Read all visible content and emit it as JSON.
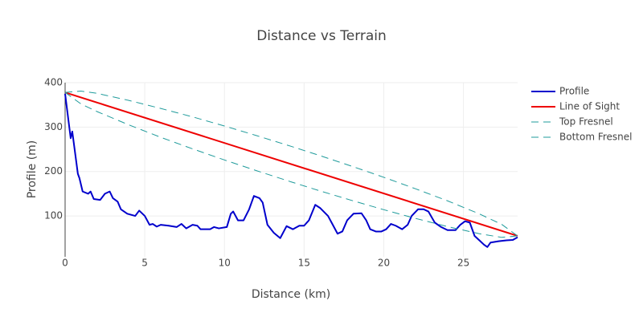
{
  "chart_data": {
    "type": "line",
    "title": "Distance vs Terrain",
    "x_label": "Distance (km)",
    "y_label": "Profile (m)",
    "xlim": [
      0,
      28.4
    ],
    "ylim": [
      8,
      400
    ],
    "xticks": [
      0,
      5,
      10,
      15,
      20,
      25
    ],
    "yticks": [
      100,
      200,
      300,
      400
    ],
    "grid": true,
    "legend": "right",
    "series": [
      {
        "name": "Profile",
        "color": "#0000cc",
        "dash": false,
        "width": 2,
        "x": [
          0,
          0.35,
          0.45,
          0.8,
          0.9,
          1.1,
          1.45,
          1.6,
          1.8,
          2.2,
          2.5,
          2.8,
          3.0,
          3.3,
          3.5,
          3.9,
          4.4,
          4.65,
          5.0,
          5.3,
          5.5,
          5.75,
          6.0,
          6.5,
          7.0,
          7.3,
          7.6,
          8.0,
          8.3,
          8.5,
          9.1,
          9.35,
          9.65,
          10.15,
          10.4,
          10.55,
          10.85,
          11.2,
          11.55,
          11.85,
          12.2,
          12.4,
          12.7,
          13.1,
          13.5,
          13.9,
          14.3,
          14.7,
          15.0,
          15.3,
          15.7,
          16.0,
          16.5,
          16.8,
          17.1,
          17.4,
          17.7,
          18.1,
          18.6,
          18.9,
          19.15,
          19.5,
          19.85,
          20.15,
          20.45,
          20.75,
          21.15,
          21.5,
          21.75,
          22.15,
          22.5,
          22.8,
          23.2,
          23.6,
          24.0,
          24.5,
          24.8,
          25.1,
          25.4,
          25.7,
          26.0,
          26.3,
          26.5,
          26.7,
          27.2,
          27.7,
          28.1,
          28.4
        ],
        "values": [
          375,
          275,
          290,
          195,
          185,
          155,
          150,
          155,
          138,
          136,
          150,
          155,
          140,
          132,
          115,
          105,
          100,
          112,
          100,
          80,
          82,
          76,
          80,
          78,
          75,
          82,
          72,
          80,
          78,
          70,
          70,
          75,
          72,
          75,
          105,
          110,
          90,
          90,
          115,
          145,
          140,
          130,
          80,
          62,
          50,
          77,
          70,
          78,
          78,
          90,
          125,
          118,
          100,
          80,
          60,
          65,
          90,
          105,
          106,
          90,
          70,
          65,
          65,
          70,
          82,
          78,
          70,
          80,
          100,
          115,
          115,
          110,
          85,
          75,
          68,
          68,
          80,
          88,
          85,
          55,
          45,
          35,
          30,
          40,
          43,
          45,
          46,
          52
        ]
      },
      {
        "name": "Line of Sight",
        "color": "#ee0000",
        "dash": false,
        "width": 2,
        "x": [
          0,
          28.4
        ],
        "values": [
          378,
          55
        ]
      },
      {
        "name": "Top Fresnel",
        "color": "#1f9b9b",
        "dash": true,
        "width": 1,
        "x": [
          0,
          1,
          2,
          4,
          6,
          8,
          10,
          12,
          14.2,
          16,
          18,
          20,
          22,
          24,
          26,
          27.4,
          28.4
        ],
        "values": [
          378,
          381,
          376,
          360,
          342,
          323,
          302.5,
          281,
          256.5,
          235.7,
          211.8,
          187,
          161,
          134,
          104.6,
          81,
          55
        ]
      },
      {
        "name": "Bottom Fresnel",
        "color": "#1f9b9b",
        "dash": true,
        "width": 1,
        "x": [
          0,
          1,
          2,
          4,
          6,
          8,
          10,
          12,
          14.2,
          16,
          18,
          20,
          22,
          24,
          26,
          27.4,
          28.4
        ],
        "values": [
          378,
          352,
          335,
          305,
          277,
          251,
          226,
          202,
          176.5,
          156.3,
          134.8,
          114,
          94.4,
          76,
          60,
          51.7,
          55
        ]
      }
    ]
  }
}
